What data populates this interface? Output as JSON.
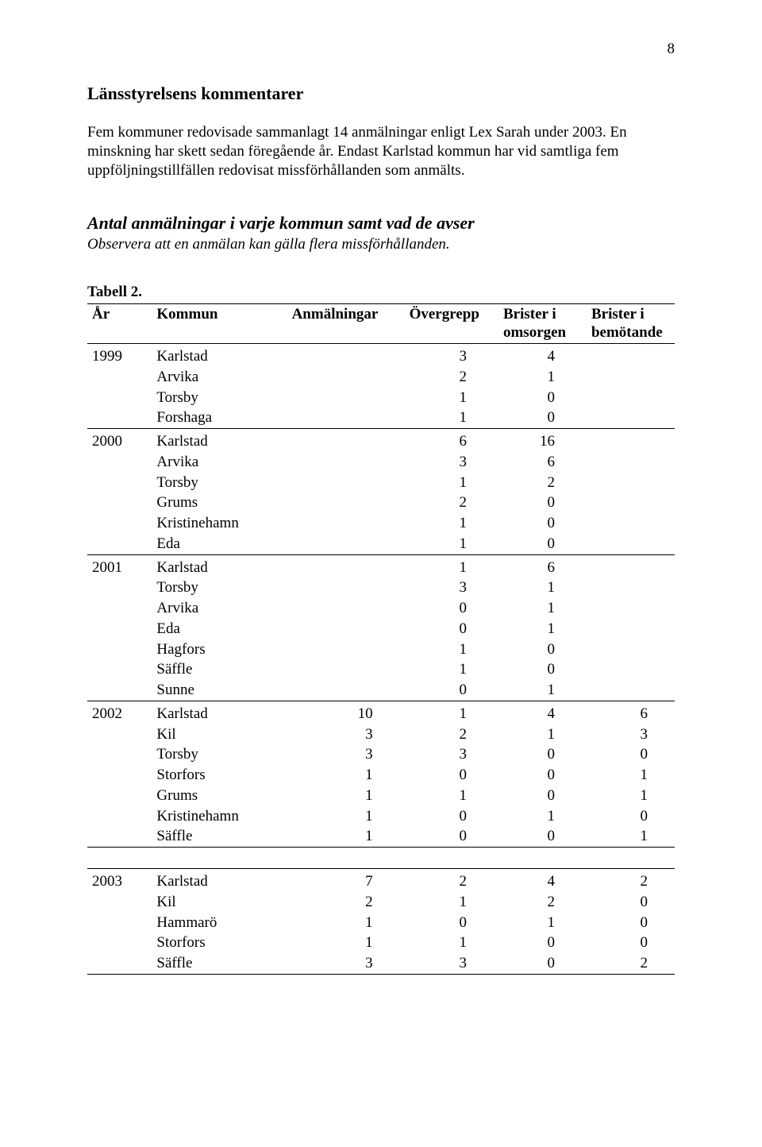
{
  "page_number": "8",
  "heading": "Länsstyrelsens kommentarer",
  "paragraph": "Fem kommuner redovisade sammanlagt 14 anmälningar enligt Lex Sarah under 2003. En minskning har skett sedan föregående år. Endast Karlstad kommun har vid samtliga fem uppföljningstillfällen redovisat missförhållanden som anmälts.",
  "section_title": "Antal anmälningar i varje kommun samt vad de avser",
  "section_sub": "Observera att en anmälan kan gälla flera missförhållanden.",
  "table_label": "Tabell 2.",
  "headers": {
    "year": "År",
    "kommun": "Kommun",
    "anm": "Anmälningar",
    "over": "Övergrepp",
    "bri1a": "Brister i",
    "bri1b": "omsorgen",
    "bri2a": "Brister i",
    "bri2b": "bemötande"
  },
  "groups": [
    {
      "year": "1999",
      "rows": [
        {
          "kommun": "Karlstad",
          "anm": "",
          "over": "3",
          "b1": "4",
          "b2": ""
        },
        {
          "kommun": "Arvika",
          "anm": "",
          "over": "2",
          "b1": "1",
          "b2": ""
        },
        {
          "kommun": "Torsby",
          "anm": "",
          "over": "1",
          "b1": "0",
          "b2": ""
        },
        {
          "kommun": "Forshaga",
          "anm": "",
          "over": "1",
          "b1": "0",
          "b2": ""
        }
      ]
    },
    {
      "year": "2000",
      "rows": [
        {
          "kommun": "Karlstad",
          "anm": "",
          "over": "6",
          "b1": "16",
          "b2": ""
        },
        {
          "kommun": "Arvika",
          "anm": "",
          "over": "3",
          "b1": "6",
          "b2": ""
        },
        {
          "kommun": "Torsby",
          "anm": "",
          "over": "1",
          "b1": "2",
          "b2": ""
        },
        {
          "kommun": "Grums",
          "anm": "",
          "over": "2",
          "b1": "0",
          "b2": ""
        },
        {
          "kommun": "Kristinehamn",
          "anm": "",
          "over": "1",
          "b1": "0",
          "b2": ""
        },
        {
          "kommun": "Eda",
          "anm": "",
          "over": "1",
          "b1": "0",
          "b2": ""
        }
      ]
    },
    {
      "year": "2001",
      "rows": [
        {
          "kommun": "Karlstad",
          "anm": "",
          "over": "1",
          "b1": "6",
          "b2": ""
        },
        {
          "kommun": "Torsby",
          "anm": "",
          "over": "3",
          "b1": "1",
          "b2": ""
        },
        {
          "kommun": "Arvika",
          "anm": "",
          "over": "0",
          "b1": "1",
          "b2": ""
        },
        {
          "kommun": "Eda",
          "anm": "",
          "over": "0",
          "b1": "1",
          "b2": ""
        },
        {
          "kommun": "Hagfors",
          "anm": "",
          "over": "1",
          "b1": "0",
          "b2": ""
        },
        {
          "kommun": "Säffle",
          "anm": "",
          "over": "1",
          "b1": "0",
          "b2": ""
        },
        {
          "kommun": "Sunne",
          "anm": "",
          "over": "0",
          "b1": "1",
          "b2": ""
        }
      ]
    },
    {
      "year": "2002",
      "rows": [
        {
          "kommun": "Karlstad",
          "anm": "10",
          "over": "1",
          "b1": "4",
          "b2": "6"
        },
        {
          "kommun": "Kil",
          "anm": "3",
          "over": "2",
          "b1": "1",
          "b2": "3"
        },
        {
          "kommun": "Torsby",
          "anm": "3",
          "over": "3",
          "b1": "0",
          "b2": "0"
        },
        {
          "kommun": "Storfors",
          "anm": "1",
          "over": "0",
          "b1": "0",
          "b2": "1"
        },
        {
          "kommun": "Grums",
          "anm": "1",
          "over": "1",
          "b1": "0",
          "b2": "1"
        },
        {
          "kommun": "Kristinehamn",
          "anm": "1",
          "over": "0",
          "b1": "1",
          "b2": "0"
        },
        {
          "kommun": "Säffle",
          "anm": "1",
          "over": "0",
          "b1": "0",
          "b2": "1"
        }
      ]
    }
  ],
  "group_last": {
    "year": "2003",
    "rows": [
      {
        "kommun": "Karlstad",
        "anm": "7",
        "over": "2",
        "b1": "4",
        "b2": "2"
      },
      {
        "kommun": "Kil",
        "anm": "2",
        "over": "1",
        "b1": "2",
        "b2": "0"
      },
      {
        "kommun": "Hammarö",
        "anm": "1",
        "over": "0",
        "b1": "1",
        "b2": "0"
      },
      {
        "kommun": "Storfors",
        "anm": "1",
        "over": "1",
        "b1": "0",
        "b2": "0"
      },
      {
        "kommun": "Säffle",
        "anm": "3",
        "over": "3",
        "b1": "0",
        "b2": "2"
      }
    ]
  }
}
